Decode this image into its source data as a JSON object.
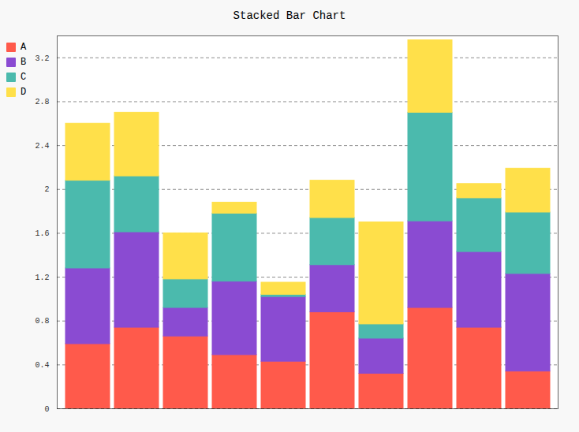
{
  "chart_data": {
    "type": "bar",
    "title": "Stacked Bar Chart",
    "stacked": true,
    "grid": true,
    "legend": "top-left",
    "tick_labels": "y",
    "categories": [
      null,
      null,
      null,
      null,
      null,
      null,
      null,
      null,
      null,
      null
    ],
    "series": [
      {
        "name": "A",
        "color": "#ff5a4b",
        "values": [
          0.59,
          0.74,
          0.66,
          0.49,
          0.43,
          0.88,
          0.32,
          0.92,
          0.74,
          0.34
        ]
      },
      {
        "name": "B",
        "color": "#8a4bd2",
        "values": [
          0.69,
          0.87,
          0.26,
          0.67,
          0.59,
          0.43,
          0.32,
          0.79,
          0.69,
          0.89
        ]
      },
      {
        "name": "C",
        "color": "#4bbaad",
        "values": [
          0.8,
          0.51,
          0.26,
          0.62,
          0.02,
          0.43,
          0.13,
          0.99,
          0.49,
          0.56
        ]
      },
      {
        "name": "D",
        "color": "#ffe04a",
        "values": [
          0.52,
          0.58,
          0.42,
          0.1,
          0.11,
          0.34,
          0.93,
          0.66,
          0.13,
          0.4
        ]
      }
    ],
    "ylim": [
      0,
      3.4
    ],
    "yticks": [
      0,
      0.4,
      0.8,
      1.2,
      1.6,
      2,
      2.4,
      2.8,
      3.2
    ]
  }
}
